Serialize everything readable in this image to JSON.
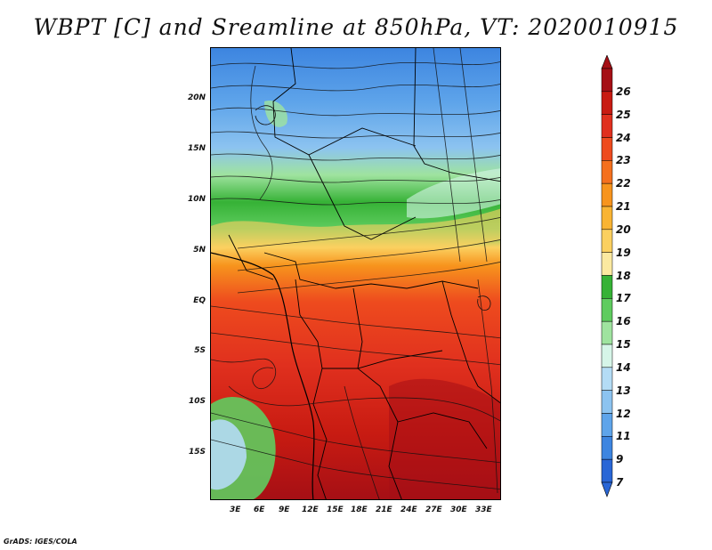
{
  "title": "WBPT [C] and Sreamline at 850hPa, VT: 2020010915",
  "credit": "GrADS: IGES/COLA",
  "lat_labels": [
    "20N",
    "15N",
    "10N",
    "5N",
    "EQ",
    "5S",
    "10S",
    "15S"
  ],
  "lon_labels": [
    "3E",
    "6E",
    "9E",
    "12E",
    "15E",
    "18E",
    "21E",
    "24E",
    "27E",
    "30E",
    "33E"
  ],
  "colorbar": {
    "labels": [
      "26",
      "25",
      "24",
      "23",
      "22",
      "21",
      "20",
      "19",
      "18",
      "17",
      "16",
      "15",
      "14",
      "13",
      "12",
      "11",
      "9",
      "7"
    ],
    "colors": [
      "#a50f15",
      "#c81b12",
      "#e0301e",
      "#ee4b1e",
      "#f4701e",
      "#f7941d",
      "#f9b433",
      "#fbd060",
      "#fbe9a0",
      "#36b236",
      "#5fcc5f",
      "#9fe39f",
      "#d6f5e8",
      "#b4dcf5",
      "#8cc3f0",
      "#5ea4ea",
      "#3d85e0",
      "#2966d6"
    ]
  },
  "map": {
    "fields": {
      "hot": "#e0301e",
      "very_hot": "#c81b12",
      "warm": "#f4701e",
      "mild": "#fbd060",
      "green": "#36b236",
      "light_green": "#9fe39f",
      "cold": "#5ea4ea",
      "very_cold": "#3d85e0"
    }
  }
}
